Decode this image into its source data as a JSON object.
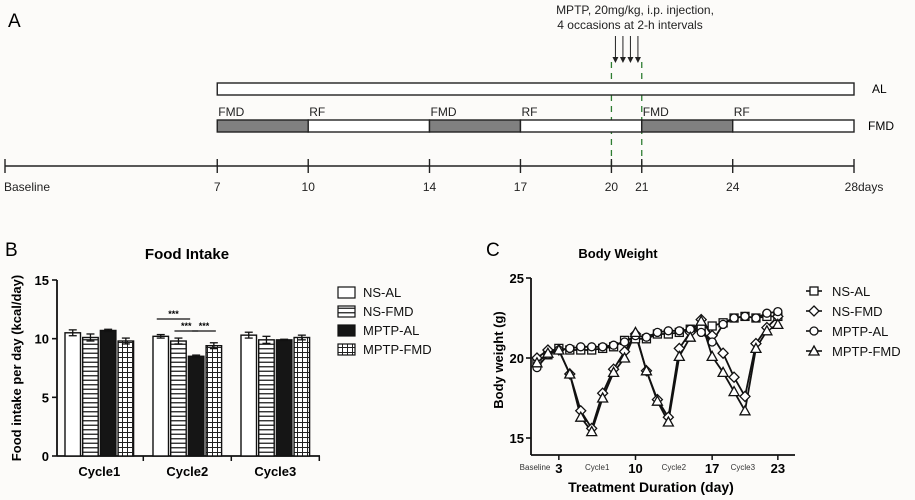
{
  "panels": {
    "A": {
      "letter": "A",
      "annotation_line1": "MPTP, 20mg/kg, i.p. injection,",
      "annotation_line2": "4 occasions at 2-h intervals",
      "injection_arrows": 4,
      "timeline_ticks": [
        {
          "day": 0,
          "label": "Baseline"
        },
        {
          "day": 7,
          "label": "7"
        },
        {
          "day": 10,
          "label": "10"
        },
        {
          "day": 14,
          "label": "14"
        },
        {
          "day": 17,
          "label": "17"
        },
        {
          "day": 20,
          "label": "20"
        },
        {
          "day": 21,
          "label": "21"
        },
        {
          "day": 24,
          "label": "24"
        },
        {
          "day": 28,
          "label": "28days"
        }
      ],
      "dashed_markers": [
        20,
        21
      ],
      "al_bar": {
        "label": "AL",
        "start": 7,
        "end": 28
      },
      "fmd_bar": {
        "label": "FMD",
        "segments": [
          {
            "start": 7,
            "end": 10,
            "type": "FMD",
            "label": "FMD"
          },
          {
            "start": 10,
            "end": 14,
            "type": "RF",
            "label": "RF"
          },
          {
            "start": 14,
            "end": 17,
            "type": "FMD",
            "label": "FMD"
          },
          {
            "start": 17,
            "end": 21,
            "type": "RF",
            "label": "RF"
          },
          {
            "start": 21,
            "end": 24,
            "type": "FMD",
            "label": "FMD"
          },
          {
            "start": 24,
            "end": 28,
            "type": "RF",
            "label": "RF"
          }
        ]
      },
      "colors": {
        "fmd_fill": "#808080",
        "rf_fill": "#ffffff",
        "dashed": "#2e7d32"
      }
    },
    "B": {
      "letter": "B"
    },
    "C": {
      "letter": "C"
    }
  },
  "chart_data": [
    {
      "type": "bar",
      "title": "Food Intake",
      "xlabel": "",
      "ylabel": "Food intake per day (kcal/day)",
      "ylim": [
        0,
        15
      ],
      "yticks": [
        0,
        5,
        10,
        15
      ],
      "categories": [
        "Cycle1",
        "Cycle2",
        "Cycle3"
      ],
      "series": [
        {
          "name": "NS-AL",
          "pattern": "open",
          "values": [
            10.5,
            10.2,
            10.3
          ],
          "errors": [
            0.25,
            0.15,
            0.25
          ]
        },
        {
          "name": "NS-FMD",
          "pattern": "horizontal-stripes",
          "values": [
            10.1,
            9.8,
            9.9
          ],
          "errors": [
            0.3,
            0.25,
            0.3
          ]
        },
        {
          "name": "MPTP-AL",
          "pattern": "solid",
          "values": [
            10.7,
            8.5,
            9.9
          ],
          "errors": [
            0.1,
            0.1,
            0.05
          ]
        },
        {
          "name": "MPTP-FMD",
          "pattern": "grid",
          "values": [
            9.8,
            9.4,
            10.1
          ],
          "errors": [
            0.25,
            0.25,
            0.2
          ]
        }
      ],
      "significance": [
        {
          "from": "NS-AL",
          "to": "MPTP-AL",
          "category": "Cycle2",
          "label": "***"
        },
        {
          "from": "NS-FMD",
          "to": "MPTP-AL",
          "category": "Cycle2",
          "label": "***"
        },
        {
          "from": "MPTP-AL",
          "to": "MPTP-FMD",
          "category": "Cycle2",
          "label": "***"
        }
      ],
      "legend": {
        "placement": "right",
        "entries": [
          "NS-AL",
          "NS-FMD",
          "MPTP-AL",
          "MPTP-FMD"
        ]
      }
    },
    {
      "type": "line",
      "title": "Body Weight",
      "xlabel": "Treatment Duration (day)",
      "ylabel": "Body weight (g)",
      "ylim": [
        15,
        25
      ],
      "yticks": [
        15,
        20,
        25
      ],
      "xlim": [
        0,
        25
      ],
      "xticks": [
        3,
        10,
        17,
        23
      ],
      "x_annotations": [
        {
          "x": 1.2,
          "label": "Baseline"
        },
        {
          "x": 6.5,
          "label": "Cycle1"
        },
        {
          "x": 13.5,
          "label": "Cycle2"
        },
        {
          "x": 19.8,
          "label": "Cycle3"
        }
      ],
      "x": [
        1,
        2,
        3,
        4,
        5,
        6,
        7,
        8,
        9,
        10,
        11,
        12,
        13,
        14,
        15,
        16,
        17,
        18,
        19,
        20,
        21,
        22,
        23
      ],
      "series": [
        {
          "name": "NS-AL",
          "marker": "square",
          "values": [
            19.8,
            20.2,
            20.6,
            20.5,
            20.5,
            20.5,
            20.6,
            20.7,
            21.1,
            21.2,
            21.2,
            21.5,
            21.5,
            21.6,
            21.8,
            21.9,
            22.0,
            22.2,
            22.5,
            22.6,
            22.5,
            22.6,
            22.6
          ]
        },
        {
          "name": "NS-FMD",
          "marker": "diamond",
          "values": [
            20.0,
            20.5,
            20.5,
            19.0,
            16.7,
            15.6,
            17.8,
            19.3,
            20.4,
            21.5,
            19.2,
            17.4,
            16.3,
            20.6,
            21.6,
            22.4,
            21.4,
            20.3,
            18.8,
            17.6,
            20.9,
            21.9,
            22.6
          ]
        },
        {
          "name": "MPTP-AL",
          "marker": "circle",
          "values": [
            19.4,
            20.2,
            20.5,
            20.6,
            20.7,
            20.7,
            20.7,
            20.8,
            21.0,
            21.4,
            21.3,
            21.6,
            21.7,
            21.7,
            21.8,
            21.6,
            21.0,
            22.1,
            22.5,
            22.6,
            22.5,
            22.8,
            22.9
          ]
        },
        {
          "name": "MPTP-FMD",
          "marker": "triangle",
          "values": [
            19.7,
            20.3,
            20.5,
            19.0,
            16.3,
            15.4,
            17.5,
            19.1,
            20.0,
            21.6,
            19.2,
            17.3,
            16.0,
            20.1,
            21.3,
            22.3,
            20.1,
            19.1,
            17.9,
            16.7,
            20.6,
            21.7,
            22.1
          ]
        }
      ],
      "legend": {
        "placement": "right",
        "entries": [
          "NS-AL",
          "NS-FMD",
          "MPTP-AL",
          "MPTP-FMD"
        ]
      }
    }
  ]
}
